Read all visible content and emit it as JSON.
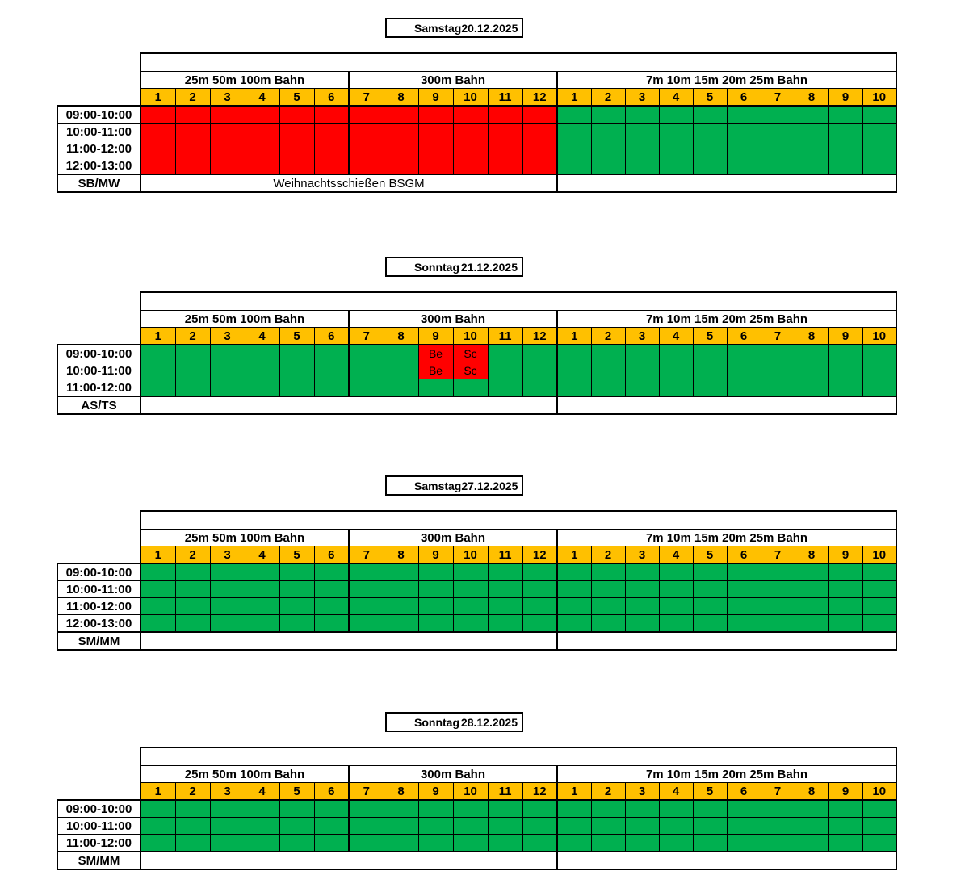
{
  "colors": {
    "free": "#00B050",
    "booked": "#FF0000",
    "lane_header": "#FFC000",
    "grid_border": "#000000",
    "page_background": "#FFFFFF"
  },
  "groups": [
    {
      "label": "25m 50m 100m Bahn",
      "lanes": [
        "1",
        "2",
        "3",
        "4",
        "5",
        "6"
      ]
    },
    {
      "label": "300m Bahn",
      "lanes": [
        "7",
        "8",
        "9",
        "10",
        "11",
        "12"
      ]
    },
    {
      "label": "7m 10m 15m 20m 25m Bahn",
      "lanes": [
        "1",
        "2",
        "3",
        "4",
        "5",
        "6",
        "7",
        "8",
        "9",
        "10"
      ]
    }
  ],
  "days": [
    {
      "weekday": "Samstag",
      "date": "20.12.2025",
      "staff": "SB/MW",
      "times": [
        "09:00-10:00",
        "10:00-11:00",
        "11:00-12:00",
        "12:00-13:00"
      ],
      "rows": [
        [
          "B",
          "B",
          "B",
          "B",
          "B",
          "B",
          "B",
          "B",
          "B",
          "B",
          "B",
          "B",
          "F",
          "F",
          "F",
          "F",
          "F",
          "F",
          "F",
          "F",
          "F",
          "F"
        ],
        [
          "B",
          "B",
          "B",
          "B",
          "B",
          "B",
          "B",
          "B",
          "B",
          "B",
          "B",
          "B",
          "F",
          "F",
          "F",
          "F",
          "F",
          "F",
          "F",
          "F",
          "F",
          "F"
        ],
        [
          "B",
          "B",
          "B",
          "B",
          "B",
          "B",
          "B",
          "B",
          "B",
          "B",
          "B",
          "B",
          "F",
          "F",
          "F",
          "F",
          "F",
          "F",
          "F",
          "F",
          "F",
          "F"
        ],
        [
          "B",
          "B",
          "B",
          "B",
          "B",
          "B",
          "B",
          "B",
          "B",
          "B",
          "B",
          "B",
          "F",
          "F",
          "F",
          "F",
          "F",
          "F",
          "F",
          "F",
          "F",
          "F"
        ]
      ],
      "labels": {},
      "notes": {
        "left": "Weihnachtsschießen BSGM",
        "right": ""
      }
    },
    {
      "weekday": "Sonntag",
      "date": "21.12.2025",
      "staff": "AS/TS",
      "times": [
        "09:00-10:00",
        "10:00-11:00",
        "11:00-12:00"
      ],
      "rows": [
        [
          "F",
          "F",
          "F",
          "F",
          "F",
          "F",
          "F",
          "F",
          "B",
          "B",
          "F",
          "F",
          "F",
          "F",
          "F",
          "F",
          "F",
          "F",
          "F",
          "F",
          "F",
          "F"
        ],
        [
          "F",
          "F",
          "F",
          "F",
          "F",
          "F",
          "F",
          "F",
          "B",
          "B",
          "F",
          "F",
          "F",
          "F",
          "F",
          "F",
          "F",
          "F",
          "F",
          "F",
          "F",
          "F"
        ],
        [
          "F",
          "F",
          "F",
          "F",
          "F",
          "F",
          "F",
          "F",
          "F",
          "F",
          "F",
          "F",
          "F",
          "F",
          "F",
          "F",
          "F",
          "F",
          "F",
          "F",
          "F",
          "F"
        ]
      ],
      "labels": {
        "r0c8": "Be",
        "r0c9": "Sc",
        "r1c8": "Be",
        "r1c9": "Sc"
      },
      "notes": {
        "left": "",
        "right": ""
      }
    },
    {
      "weekday": "Samstag",
      "date": "27.12.2025",
      "staff": "SM/MM",
      "times": [
        "09:00-10:00",
        "10:00-11:00",
        "11:00-12:00",
        "12:00-13:00"
      ],
      "rows": [
        [
          "F",
          "F",
          "F",
          "F",
          "F",
          "F",
          "F",
          "F",
          "F",
          "F",
          "F",
          "F",
          "F",
          "F",
          "F",
          "F",
          "F",
          "F",
          "F",
          "F",
          "F",
          "F"
        ],
        [
          "F",
          "F",
          "F",
          "F",
          "F",
          "F",
          "F",
          "F",
          "F",
          "F",
          "F",
          "F",
          "F",
          "F",
          "F",
          "F",
          "F",
          "F",
          "F",
          "F",
          "F",
          "F"
        ],
        [
          "F",
          "F",
          "F",
          "F",
          "F",
          "F",
          "F",
          "F",
          "F",
          "F",
          "F",
          "F",
          "F",
          "F",
          "F",
          "F",
          "F",
          "F",
          "F",
          "F",
          "F",
          "F"
        ],
        [
          "F",
          "F",
          "F",
          "F",
          "F",
          "F",
          "F",
          "F",
          "F",
          "F",
          "F",
          "F",
          "F",
          "F",
          "F",
          "F",
          "F",
          "F",
          "F",
          "F",
          "F",
          "F"
        ]
      ],
      "labels": {},
      "notes": {
        "left": "",
        "right": ""
      }
    },
    {
      "weekday": "Sonntag",
      "date": "28.12.2025",
      "staff": "SM/MM",
      "times": [
        "09:00-10:00",
        "10:00-11:00",
        "11:00-12:00"
      ],
      "rows": [
        [
          "F",
          "F",
          "F",
          "F",
          "F",
          "F",
          "F",
          "F",
          "F",
          "F",
          "F",
          "F",
          "F",
          "F",
          "F",
          "F",
          "F",
          "F",
          "F",
          "F",
          "F",
          "F"
        ],
        [
          "F",
          "F",
          "F",
          "F",
          "F",
          "F",
          "F",
          "F",
          "F",
          "F",
          "F",
          "F",
          "F",
          "F",
          "F",
          "F",
          "F",
          "F",
          "F",
          "F",
          "F",
          "F"
        ],
        [
          "F",
          "F",
          "F",
          "F",
          "F",
          "F",
          "F",
          "F",
          "F",
          "F",
          "F",
          "F",
          "F",
          "F",
          "F",
          "F",
          "F",
          "F",
          "F",
          "F",
          "F",
          "F"
        ]
      ],
      "labels": {},
      "notes": {
        "left": "",
        "right": ""
      }
    }
  ]
}
